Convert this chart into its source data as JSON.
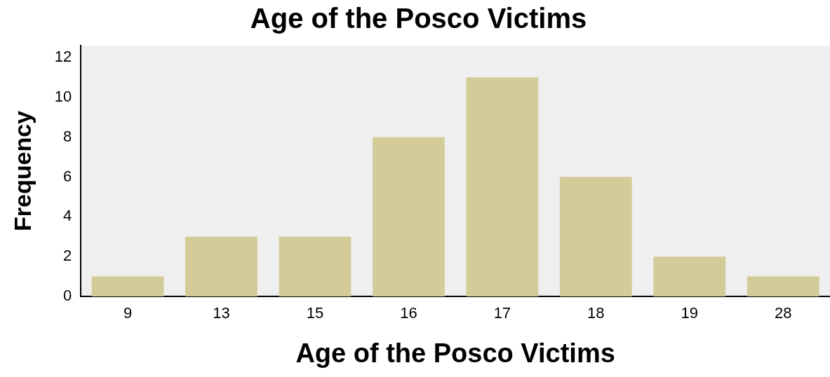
{
  "chart_data": {
    "type": "bar",
    "title": "Age of the Posco Victims",
    "xlabel": "Age of the Posco Victims",
    "ylabel": "Frequency",
    "categories": [
      "9",
      "13",
      "15",
      "16",
      "17",
      "18",
      "19",
      "28"
    ],
    "values": [
      1,
      3,
      3,
      8,
      11,
      6,
      2,
      1
    ],
    "color": "#d3cc98",
    "ylim": [
      0,
      12.6
    ],
    "yticks": [
      0,
      2,
      4,
      6,
      8,
      10,
      12
    ],
    "grid": false
  }
}
